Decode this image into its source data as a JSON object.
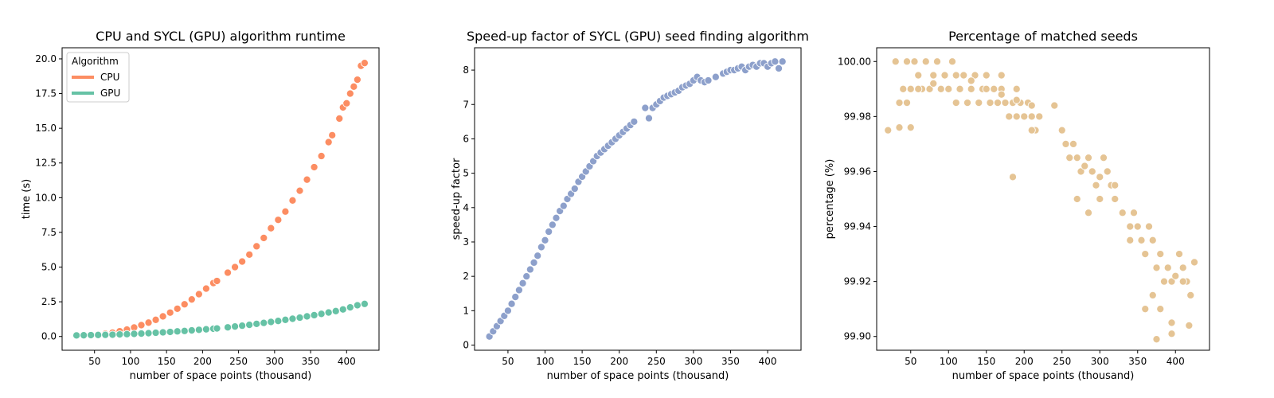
{
  "chart_data": [
    {
      "type": "scatter",
      "title": "CPU and SYCL (GPU) algorithm runtime",
      "xlabel": "number of space points (thousand)",
      "ylabel": "time (s)",
      "xlim": [
        5,
        445
      ],
      "ylim": [
        -0.99,
        20.8
      ],
      "xticks": [
        50,
        100,
        150,
        200,
        250,
        300,
        350,
        400
      ],
      "yticks": [
        0.0,
        2.5,
        5.0,
        7.5,
        10.0,
        12.5,
        15.0,
        17.5,
        20.0
      ],
      "ytick_labels": [
        "0.0",
        "2.5",
        "5.0",
        "7.5",
        "10.0",
        "12.5",
        "15.0",
        "17.5",
        "20.0"
      ],
      "grid": false,
      "legend": {
        "title": "Algorithm",
        "placement": "top-left",
        "entries": [
          "CPU",
          "GPU"
        ]
      },
      "series": [
        {
          "name": "CPU",
          "color": "#fc8d62",
          "x": [
            25,
            35,
            45,
            55,
            65,
            75,
            85,
            95,
            105,
            115,
            125,
            135,
            145,
            155,
            165,
            175,
            185,
            195,
            205,
            215,
            220,
            235,
            245,
            255,
            265,
            275,
            285,
            295,
            305,
            315,
            325,
            335,
            345,
            355,
            365,
            375,
            380,
            390,
            395,
            400,
            405,
            410,
            415,
            420,
            425
          ],
          "y": [
            0.05,
            0.08,
            0.1,
            0.15,
            0.2,
            0.28,
            0.38,
            0.5,
            0.65,
            0.82,
            1.0,
            1.2,
            1.45,
            1.72,
            2.0,
            2.32,
            2.67,
            3.05,
            3.45,
            3.85,
            4.0,
            4.6,
            5.0,
            5.4,
            5.9,
            6.5,
            7.1,
            7.8,
            8.4,
            9.0,
            9.8,
            10.5,
            11.3,
            12.2,
            13.0,
            14.0,
            14.5,
            15.7,
            16.5,
            16.8,
            17.5,
            18.0,
            18.5,
            19.5,
            19.7
          ]
        },
        {
          "name": "GPU",
          "color": "#66c2a5",
          "x": [
            25,
            35,
            45,
            55,
            65,
            75,
            85,
            95,
            105,
            115,
            125,
            135,
            145,
            155,
            165,
            175,
            185,
            195,
            205,
            215,
            220,
            235,
            245,
            255,
            265,
            275,
            285,
            295,
            305,
            315,
            325,
            335,
            345,
            355,
            365,
            375,
            385,
            395,
            405,
            415,
            425
          ],
          "y": [
            0.08,
            0.09,
            0.1,
            0.11,
            0.12,
            0.13,
            0.15,
            0.17,
            0.19,
            0.21,
            0.24,
            0.27,
            0.3,
            0.33,
            0.37,
            0.4,
            0.44,
            0.48,
            0.52,
            0.56,
            0.58,
            0.66,
            0.72,
            0.78,
            0.84,
            0.91,
            0.98,
            1.05,
            1.12,
            1.2,
            1.28,
            1.36,
            1.45,
            1.54,
            1.63,
            1.73,
            1.83,
            1.95,
            2.1,
            2.25,
            2.35
          ]
        }
      ]
    },
    {
      "type": "scatter",
      "title": "Speed-up factor of SYCL (GPU) seed finding algorithm",
      "xlabel": "number of space points (thousand)",
      "ylabel": "speed-up factor",
      "xlim": [
        5,
        445
      ],
      "ylim": [
        -0.15,
        8.65
      ],
      "xticks": [
        50,
        100,
        150,
        200,
        250,
        300,
        350,
        400
      ],
      "yticks": [
        0,
        1,
        2,
        3,
        4,
        5,
        6,
        7,
        8
      ],
      "ytick_labels": [
        "0",
        "1",
        "2",
        "3",
        "4",
        "5",
        "6",
        "7",
        "8"
      ],
      "grid": false,
      "series": [
        {
          "color": "#8da0cb",
          "x": [
            25,
            30,
            35,
            40,
            45,
            50,
            55,
            60,
            65,
            70,
            75,
            80,
            85,
            90,
            95,
            100,
            105,
            110,
            115,
            120,
            125,
            130,
            135,
            140,
            145,
            150,
            155,
            160,
            165,
            170,
            175,
            180,
            185,
            190,
            195,
            200,
            205,
            210,
            215,
            220,
            235,
            240,
            245,
            250,
            255,
            260,
            265,
            270,
            275,
            280,
            285,
            290,
            295,
            300,
            305,
            310,
            315,
            320,
            330,
            340,
            345,
            350,
            355,
            360,
            365,
            370,
            375,
            380,
            385,
            390,
            395,
            400,
            405,
            410,
            415,
            420
          ],
          "y": [
            0.25,
            0.4,
            0.55,
            0.7,
            0.85,
            1.0,
            1.2,
            1.4,
            1.6,
            1.8,
            2.0,
            2.2,
            2.4,
            2.6,
            2.85,
            3.05,
            3.3,
            3.5,
            3.7,
            3.9,
            4.05,
            4.25,
            4.4,
            4.55,
            4.75,
            4.9,
            5.05,
            5.2,
            5.35,
            5.5,
            5.6,
            5.7,
            5.8,
            5.9,
            6.0,
            6.1,
            6.2,
            6.3,
            6.4,
            6.5,
            6.9,
            6.6,
            6.9,
            7.0,
            7.1,
            7.2,
            7.25,
            7.3,
            7.35,
            7.4,
            7.5,
            7.55,
            7.6,
            7.7,
            7.8,
            7.7,
            7.65,
            7.7,
            7.8,
            7.9,
            7.95,
            8.0,
            8.0,
            8.05,
            8.1,
            8.0,
            8.1,
            8.15,
            8.1,
            8.2,
            8.2,
            8.1,
            8.2,
            8.25,
            8.05,
            8.25
          ]
        }
      ]
    },
    {
      "type": "scatter",
      "title": "Percentage of matched seeds",
      "xlabel": "number of space points (thousand)",
      "ylabel": "percentage (%)",
      "xlim": [
        5,
        445
      ],
      "ylim": [
        99.895,
        100.005
      ],
      "xticks": [
        50,
        100,
        150,
        200,
        250,
        300,
        350,
        400
      ],
      "yticks": [
        99.9,
        99.92,
        99.94,
        99.96,
        99.98,
        100.0
      ],
      "ytick_labels": [
        "99.90",
        "99.92",
        "99.94",
        "99.96",
        "99.98",
        "100.00"
      ],
      "grid": false,
      "series": [
        {
          "color": "#e5c494",
          "x": [
            20,
            30,
            35,
            40,
            45,
            50,
            55,
            60,
            65,
            70,
            75,
            80,
            85,
            90,
            95,
            100,
            105,
            110,
            115,
            120,
            125,
            130,
            135,
            140,
            145,
            150,
            155,
            160,
            165,
            170,
            175,
            180,
            185,
            190,
            195,
            200,
            205,
            210,
            215,
            220,
            35,
            50,
            60,
            80,
            110,
            130,
            150,
            170,
            190,
            210,
            240,
            250,
            255,
            260,
            265,
            270,
            275,
            280,
            285,
            290,
            295,
            300,
            305,
            310,
            315,
            320,
            330,
            340,
            345,
            350,
            355,
            360,
            365,
            370,
            375,
            380,
            385,
            390,
            395,
            400,
            405,
            410,
            415,
            420,
            425,
            270,
            285,
            300,
            320,
            340,
            360,
            370,
            380,
            395,
            410,
            185,
            375,
            395,
            418,
            45,
            170,
            190,
            210
          ],
          "y": [
            99.975,
            100.0,
            99.985,
            99.99,
            100.0,
            99.99,
            100.0,
            99.995,
            99.99,
            100.0,
            99.99,
            99.995,
            100.0,
            99.99,
            99.995,
            99.99,
            100.0,
            99.985,
            99.99,
            99.995,
            99.985,
            99.99,
            99.995,
            99.985,
            99.99,
            99.995,
            99.985,
            99.99,
            99.985,
            99.99,
            99.985,
            99.98,
            99.985,
            99.99,
            99.985,
            99.98,
            99.985,
            99.98,
            99.975,
            99.98,
            99.976,
            99.976,
            99.99,
            99.992,
            99.995,
            99.993,
            99.99,
            99.988,
            99.986,
            99.984,
            99.984,
            99.975,
            99.97,
            99.965,
            99.97,
            99.965,
            99.96,
            99.962,
            99.965,
            99.96,
            99.955,
            99.958,
            99.965,
            99.96,
            99.955,
            99.95,
            99.945,
            99.94,
            99.945,
            99.94,
            99.935,
            99.93,
            99.94,
            99.935,
            99.925,
            99.93,
            99.92,
            99.925,
            99.92,
            99.922,
            99.93,
            99.925,
            99.92,
            99.915,
            99.927,
            99.95,
            99.945,
            99.95,
            99.955,
            99.935,
            99.91,
            99.915,
            99.91,
            99.905,
            99.92,
            99.958,
            99.899,
            99.901,
            99.904,
            99.985,
            99.995,
            99.98,
            99.975
          ]
        }
      ]
    }
  ]
}
